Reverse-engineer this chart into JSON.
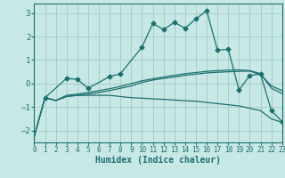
{
  "xlabel": "Humidex (Indice chaleur)",
  "bg_color": "#c8e8e5",
  "line_color": "#1a7070",
  "grid_color": "#a8ceca",
  "xlim": [
    0,
    23
  ],
  "ylim": [
    -2.5,
    3.4
  ],
  "xticks": [
    0,
    1,
    2,
    3,
    4,
    5,
    6,
    7,
    8,
    9,
    10,
    11,
    12,
    13,
    14,
    15,
    16,
    17,
    18,
    19,
    20,
    21,
    22,
    23
  ],
  "yticks": [
    -2,
    -1,
    0,
    1,
    2,
    3
  ],
  "line1_x": [
    0,
    1,
    2,
    3,
    4,
    5,
    6,
    7,
    8,
    9,
    10,
    11,
    12,
    13,
    14,
    15,
    16,
    17,
    18,
    19,
    20,
    21,
    22,
    23
  ],
  "line1_y": [
    -2.25,
    -0.6,
    -0.72,
    -0.55,
    -0.5,
    -0.5,
    -0.5,
    -0.5,
    -0.55,
    -0.6,
    -0.62,
    -0.65,
    -0.67,
    -0.7,
    -0.73,
    -0.75,
    -0.8,
    -0.85,
    -0.9,
    -0.95,
    -1.05,
    -1.15,
    -1.5,
    -1.65
  ],
  "line2_x": [
    0,
    1,
    2,
    3,
    4,
    5,
    6,
    7,
    8,
    9,
    10,
    11,
    12,
    13,
    14,
    15,
    16,
    17,
    18,
    19,
    20,
    21,
    22,
    23
  ],
  "line2_y": [
    -2.25,
    -0.6,
    -0.72,
    -0.55,
    -0.5,
    -0.45,
    -0.38,
    -0.3,
    -0.2,
    -0.1,
    0.05,
    0.15,
    0.22,
    0.28,
    0.35,
    0.4,
    0.45,
    0.48,
    0.5,
    0.52,
    0.53,
    0.38,
    -0.1,
    -0.3
  ],
  "line3_x": [
    1,
    3,
    4,
    5,
    7,
    8,
    10,
    11,
    12,
    13,
    14,
    15,
    16,
    17,
    18,
    19,
    20,
    21,
    22,
    23
  ],
  "line3_y": [
    -0.6,
    0.22,
    0.18,
    -0.2,
    0.3,
    0.42,
    1.55,
    2.55,
    2.3,
    2.6,
    2.35,
    2.75,
    3.1,
    1.42,
    1.46,
    -0.28,
    0.35,
    0.4,
    -1.15,
    -1.62
  ],
  "line4_x": [
    0,
    1,
    2,
    3,
    4,
    5,
    6,
    7,
    8,
    9,
    10,
    11,
    12,
    13,
    14,
    15,
    16,
    17,
    18,
    19,
    20,
    21,
    22,
    23
  ],
  "line4_y": [
    -2.25,
    -0.6,
    -0.72,
    -0.5,
    -0.45,
    -0.38,
    -0.3,
    -0.22,
    -0.12,
    0.0,
    0.12,
    0.2,
    0.28,
    0.35,
    0.42,
    0.47,
    0.52,
    0.55,
    0.57,
    0.58,
    0.55,
    0.42,
    -0.2,
    -0.42
  ]
}
